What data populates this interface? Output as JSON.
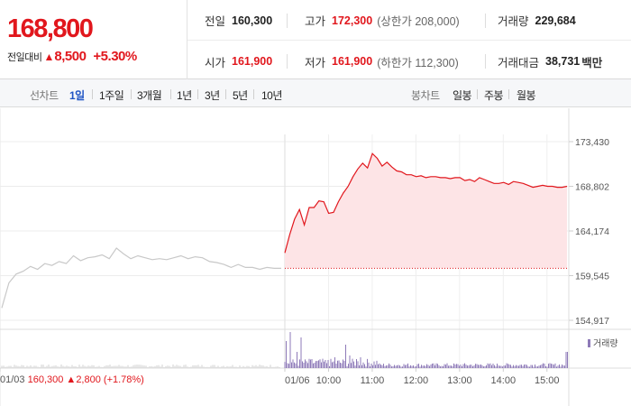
{
  "quote": {
    "price": "168,800",
    "change_label": "전일대비",
    "change_arrow": "▲",
    "change_value": "8,500",
    "change_percent": "+5.30%"
  },
  "stats": {
    "row1": [
      {
        "label": "전일",
        "value": "160,300",
        "sub": ""
      },
      {
        "label": "고가",
        "value": "172,300",
        "sub": "(상한가 208,000)"
      },
      {
        "label": "거래량",
        "value": "229,684",
        "sub": ""
      }
    ],
    "row2": [
      {
        "label": "시가",
        "value": "161,900",
        "sub": ""
      },
      {
        "label": "저가",
        "value": "161,900",
        "sub": "(하한가 112,300)"
      },
      {
        "label": "거래대금",
        "value": "38,731",
        "sub": "백만"
      }
    ]
  },
  "period_tabs": {
    "label": "선차트",
    "items": [
      "1일",
      "1주일",
      "3개월",
      "1년",
      "3년",
      "5년",
      "10년"
    ],
    "active": "1일"
  },
  "candle_tabs": {
    "label": "봉차트",
    "items": [
      "일봉",
      "주봉",
      "월봉"
    ]
  },
  "colors": {
    "up": "#e1171d",
    "active_tab": "#1f54c4",
    "prev_day_line": "#c8c8c8",
    "area_fill": "#fde4e6",
    "volume": "#8e7ab8"
  },
  "chart_data": {
    "type": "line",
    "y_ticks": [
      "173,430",
      "168,802",
      "164,174",
      "159,545",
      "154,917"
    ],
    "y_tick_values": [
      173430,
      168802,
      164174,
      159545,
      154917
    ],
    "ylim": [
      154917,
      173430
    ],
    "baseline": 160300,
    "x_ticks": [
      "01/03",
      "01/06",
      "10:00",
      "11:00",
      "12:00",
      "13:00",
      "14:00",
      "15:00"
    ],
    "previous_day_label": {
      "date": "01/03",
      "close": "160,300",
      "arrow": "▲",
      "change": "2,800",
      "percent": "(+1.78%)"
    },
    "volume_legend": "거래량",
    "series": [
      {
        "name": "01/03",
        "values": [
          156200,
          158800,
          159700,
          160000,
          160500,
          160200,
          160800,
          160600,
          161000,
          160800,
          161600,
          161100,
          161400,
          161500,
          161700,
          161300,
          162400,
          161800,
          161300,
          161600,
          161400,
          161200,
          161300,
          161200,
          161400,
          161600,
          161300,
          161500,
          161400,
          161000,
          160900,
          160700,
          160400,
          160700,
          160400,
          160400,
          160200,
          160400,
          160300,
          160300
        ]
      },
      {
        "name": "01/06",
        "values": [
          161900,
          163800,
          165400,
          166400,
          164800,
          166600,
          166600,
          167300,
          167200,
          166000,
          166100,
          167200,
          168100,
          168800,
          169800,
          170600,
          171200,
          170700,
          172200,
          171700,
          170900,
          171300,
          170800,
          170400,
          170300,
          170000,
          170000,
          169800,
          169900,
          169700,
          169800,
          169800,
          169700,
          169700,
          169600,
          169700,
          169700,
          169400,
          169500,
          169300,
          169700,
          169500,
          169300,
          169100,
          169100,
          169200,
          169000,
          169300,
          169200,
          169100,
          168900,
          168700,
          168800,
          168900,
          168800,
          168800,
          168700,
          168700,
          168800
        ]
      }
    ]
  }
}
